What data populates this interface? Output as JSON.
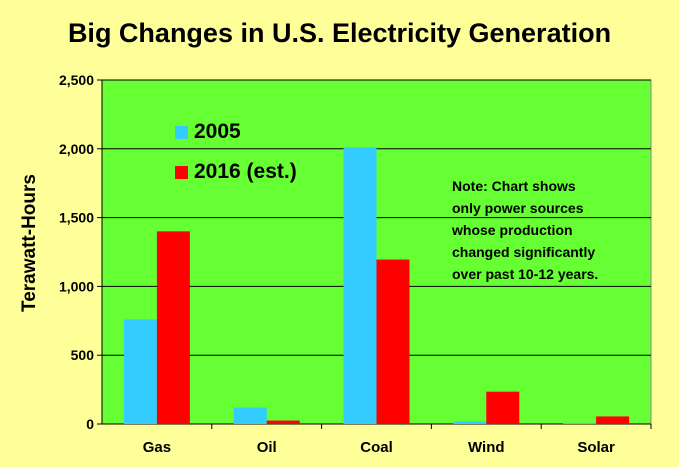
{
  "chart_data": {
    "type": "bar",
    "title": "Big Changes in U.S. Electricity Generation",
    "xlabel": "",
    "ylabel": "Terawatt-Hours",
    "categories": [
      "Gas",
      "Oil",
      "Coal",
      "Wind",
      "Solar"
    ],
    "series": [
      {
        "name": "2005",
        "color": "#33ccff",
        "values": [
          760,
          120,
          2010,
          18,
          8
        ]
      },
      {
        "name": "2016 (est.)",
        "color": "#ff0000",
        "values": [
          1400,
          25,
          1195,
          235,
          55
        ]
      }
    ],
    "ylim": [
      0,
      2500
    ],
    "yticks": [
      0,
      500,
      1000,
      1500,
      2000,
      2500
    ],
    "ytick_labels": [
      "0",
      "500",
      "1,000",
      "1,500",
      "2,000",
      "2,500"
    ],
    "grid": true,
    "legend_position": "top-left",
    "annotation": [
      "Note: Chart shows",
      "only power sources",
      "whose production",
      "changed significantly",
      "over past 10-12 years."
    ],
    "plot_background": "#66ff33",
    "page_background": "#ffff99"
  }
}
